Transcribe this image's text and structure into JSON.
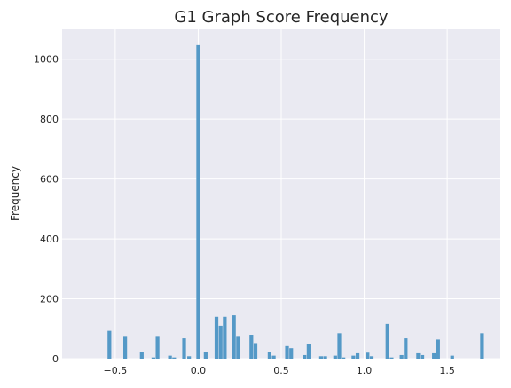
{
  "chart_data": {
    "type": "bar",
    "title": "G1 Graph Score Frequency",
    "xlabel": "",
    "ylabel": "Frequency",
    "xlim": [
      -0.82,
      1.82
    ],
    "ylim": [
      0,
      1100
    ],
    "xticks": [
      -0.5,
      0.0,
      0.5,
      1.0,
      1.5
    ],
    "xtick_labels": [
      "−0.5",
      "0.0",
      "0.5",
      "1.0",
      "1.5"
    ],
    "yticks": [
      0,
      200,
      400,
      600,
      800,
      1000
    ],
    "ytick_labels": [
      "0",
      "200",
      "400",
      "600",
      "800",
      "1000"
    ],
    "grid": true,
    "bar_color": "#5499c7",
    "background_color": "#eaeaf2",
    "grid_color": "#ffffff",
    "bin_width": 0.0225,
    "bins": [
      {
        "x": -0.535,
        "y": 93
      },
      {
        "x": -0.44,
        "y": 76
      },
      {
        "x": -0.34,
        "y": 22
      },
      {
        "x": -0.27,
        "y": 4
      },
      {
        "x": -0.245,
        "y": 76
      },
      {
        "x": -0.17,
        "y": 10
      },
      {
        "x": -0.145,
        "y": 4
      },
      {
        "x": -0.085,
        "y": 68
      },
      {
        "x": -0.055,
        "y": 8
      },
      {
        "x": 0.0,
        "y": 1047
      },
      {
        "x": 0.045,
        "y": 22
      },
      {
        "x": 0.11,
        "y": 140
      },
      {
        "x": 0.135,
        "y": 110
      },
      {
        "x": 0.16,
        "y": 140
      },
      {
        "x": 0.215,
        "y": 145
      },
      {
        "x": 0.24,
        "y": 76
      },
      {
        "x": 0.32,
        "y": 80
      },
      {
        "x": 0.345,
        "y": 52
      },
      {
        "x": 0.43,
        "y": 22
      },
      {
        "x": 0.455,
        "y": 10
      },
      {
        "x": 0.535,
        "y": 42
      },
      {
        "x": 0.56,
        "y": 35
      },
      {
        "x": 0.64,
        "y": 12
      },
      {
        "x": 0.665,
        "y": 50
      },
      {
        "x": 0.74,
        "y": 8
      },
      {
        "x": 0.765,
        "y": 8
      },
      {
        "x": 0.825,
        "y": 10
      },
      {
        "x": 0.85,
        "y": 85
      },
      {
        "x": 0.875,
        "y": 4
      },
      {
        "x": 0.935,
        "y": 10
      },
      {
        "x": 0.96,
        "y": 18
      },
      {
        "x": 1.02,
        "y": 20
      },
      {
        "x": 1.045,
        "y": 8
      },
      {
        "x": 1.14,
        "y": 116
      },
      {
        "x": 1.165,
        "y": 4
      },
      {
        "x": 1.225,
        "y": 12
      },
      {
        "x": 1.25,
        "y": 68
      },
      {
        "x": 1.325,
        "y": 18
      },
      {
        "x": 1.35,
        "y": 12
      },
      {
        "x": 1.42,
        "y": 18
      },
      {
        "x": 1.445,
        "y": 64
      },
      {
        "x": 1.53,
        "y": 10
      },
      {
        "x": 1.71,
        "y": 85
      }
    ]
  }
}
